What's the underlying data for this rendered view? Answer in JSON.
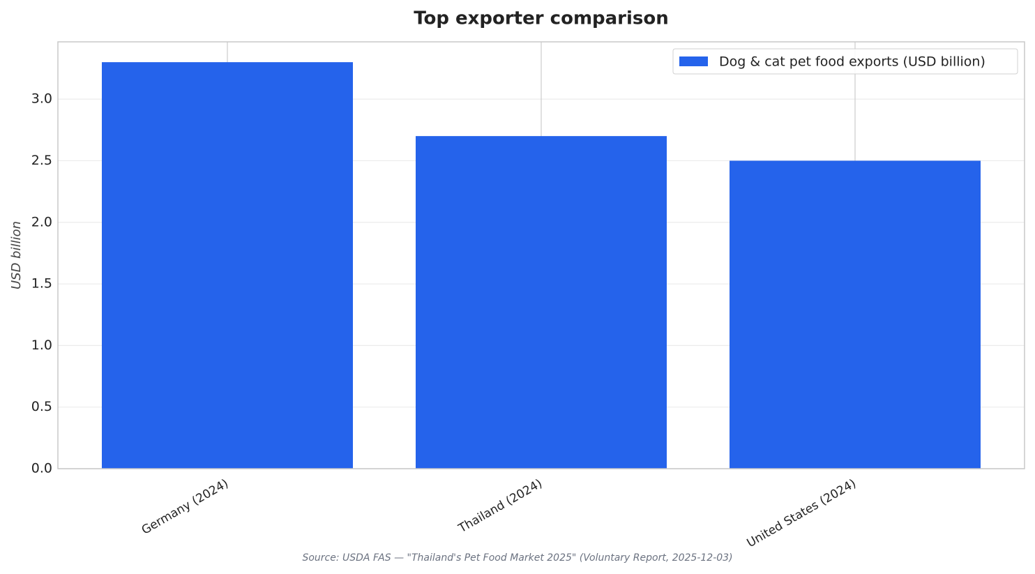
{
  "chart_data": {
    "type": "bar",
    "title": "Top exporter comparison",
    "categories": [
      "Germany (2024)",
      "Thailand (2024)",
      "United States (2024)"
    ],
    "series": [
      {
        "name": "Dog & cat pet food exports (USD billion)",
        "color": "#2563eb",
        "values": [
          3.3,
          2.7,
          2.5
        ]
      }
    ],
    "ylabel": "USD billion",
    "ylim": [
      0,
      3.465
    ],
    "yticks": [
      {
        "value": 0,
        "label": "0.0"
      },
      {
        "value": 0.5,
        "label": "0.5"
      },
      {
        "value": 1,
        "label": "1.0"
      },
      {
        "value": 1.5,
        "label": "1.5"
      },
      {
        "value": 2,
        "label": "2.0"
      },
      {
        "value": 2.5,
        "label": "2.5"
      },
      {
        "value": 3,
        "label": "3.0"
      }
    ],
    "grid": true,
    "legend": "upper right",
    "source": "Source: USDA FAS — \"Thailand's Pet Food Market 2025\" (Voluntary Report, 2025-12-03)"
  }
}
